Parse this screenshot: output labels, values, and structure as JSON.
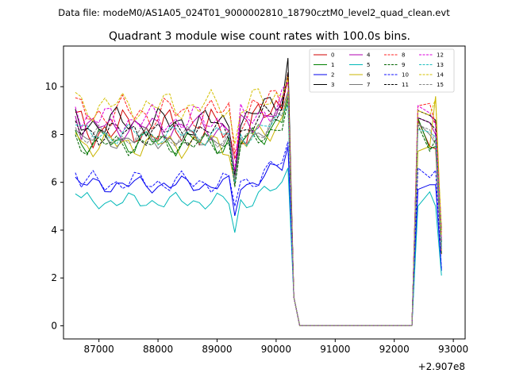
{
  "chart_data": {
    "type": "line",
    "suptitle": "Data file: modeM0/AS1A05_024T01_9000002810_18790cztM0_level2_quad_clean.evt",
    "title": "Quadrant 3 module wise count rates with 100.0s bins.",
    "xlabel": "",
    "ylabel": "",
    "x_offset_label": "+2.907e8",
    "xlim": [
      86400,
      93200
    ],
    "ylim": [
      -0.55,
      11.7
    ],
    "xticks": [
      87000,
      88000,
      89000,
      90000,
      91000,
      92000,
      93000
    ],
    "xtick_labels": [
      "87000",
      "88000",
      "89000",
      "90000",
      "91000",
      "92000",
      "93000"
    ],
    "yticks": [
      0,
      2,
      4,
      6,
      8,
      10
    ],
    "ytick_labels": [
      "0",
      "2",
      "4",
      "6",
      "8",
      "10"
    ],
    "legend_position": "top-right",
    "gap_x": [
      90300,
      90400,
      92300
    ],
    "resume_x": [
      92400,
      92600,
      92700,
      92800
    ],
    "series": [
      {
        "name": "0",
        "color": "#d00000",
        "dash": "solid",
        "base": 8.2,
        "amp": 0.9,
        "dip": 7.0,
        "peak": 10.6,
        "seg2": [
          8.6,
          7.5,
          7.4,
          3.0
        ]
      },
      {
        "name": "1",
        "color": "#008000",
        "dash": "solid",
        "base": 7.7,
        "amp": 0.6,
        "dip": 6.0,
        "peak": 9.6,
        "seg2": [
          8.7,
          7.4,
          7.5,
          3.2
        ]
      },
      {
        "name": "2",
        "color": "#0000ee",
        "dash": "solid",
        "base": 5.9,
        "amp": 0.4,
        "dip": 4.6,
        "peak": 7.5,
        "seg2": [
          5.7,
          5.9,
          5.9,
          2.3
        ]
      },
      {
        "name": "3",
        "color": "#000000",
        "dash": "solid",
        "base": 8.5,
        "amp": 0.7,
        "dip": 6.3,
        "peak": 11.2,
        "seg2": [
          9.0,
          8.8,
          8.6,
          4.0
        ]
      },
      {
        "name": "4",
        "color": "#b000b0",
        "dash": "solid",
        "base": 8.3,
        "amp": 0.6,
        "dip": 6.2,
        "peak": 10.2,
        "seg2": [
          8.7,
          8.5,
          8.0,
          3.3
        ]
      },
      {
        "name": "5",
        "color": "#00b8b8",
        "dash": "solid",
        "base": 5.2,
        "amp": 0.4,
        "dip": 3.9,
        "peak": 6.6,
        "seg2": [
          5.0,
          5.6,
          5.0,
          2.1
        ]
      },
      {
        "name": "6",
        "color": "#c8b400",
        "dash": "solid",
        "base": 7.6,
        "amp": 0.6,
        "dip": 6.0,
        "peak": 9.7,
        "seg2": [
          7.3,
          7.5,
          9.6,
          3.6
        ]
      },
      {
        "name": "7",
        "color": "#777777",
        "dash": "solid",
        "base": 7.8,
        "amp": 0.5,
        "dip": 5.9,
        "peak": 9.8,
        "seg2": [
          8.5,
          8.0,
          7.6,
          3.4
        ]
      },
      {
        "name": "8",
        "color": "#ff2020",
        "dash": "dashed",
        "base": 8.9,
        "amp": 0.8,
        "dip": 7.2,
        "peak": 10.4,
        "seg2": [
          9.2,
          9.3,
          8.4,
          3.9
        ]
      },
      {
        "name": "9",
        "color": "#006400",
        "dash": "dashed",
        "base": 7.6,
        "amp": 0.5,
        "dip": 5.8,
        "peak": 9.4,
        "seg2": [
          8.4,
          7.3,
          7.8,
          3.0
        ]
      },
      {
        "name": "10",
        "color": "#1010ff",
        "dash": "dashed",
        "base": 6.0,
        "amp": 0.5,
        "dip": 5.0,
        "peak": 7.7,
        "seg2": [
          6.6,
          6.2,
          6.5,
          2.4
        ]
      },
      {
        "name": "11",
        "color": "#000000",
        "dash": "dashed",
        "base": 8.1,
        "amp": 0.6,
        "dip": 6.3,
        "peak": 10.6,
        "seg2": [
          8.7,
          8.5,
          8.2,
          3.5
        ]
      },
      {
        "name": "12",
        "color": "#dd00dd",
        "dash": "dashed",
        "base": 8.6,
        "amp": 0.7,
        "dip": 6.5,
        "peak": 10.2,
        "seg2": [
          9.2,
          8.9,
          8.4,
          3.6
        ]
      },
      {
        "name": "13",
        "color": "#20c0c0",
        "dash": "dashed",
        "base": 8.0,
        "amp": 0.5,
        "dip": 6.0,
        "peak": 9.2,
        "seg2": [
          8.2,
          8.1,
          7.9,
          3.3
        ]
      },
      {
        "name": "14",
        "color": "#d4c000",
        "dash": "dashed",
        "base": 9.2,
        "amp": 0.7,
        "dip": 7.6,
        "peak": 10.4,
        "seg2": [
          9.0,
          8.8,
          9.5,
          3.8
        ]
      },
      {
        "name": "15",
        "color": "#888888",
        "dash": "dashed",
        "base": 7.9,
        "amp": 0.5,
        "dip": 6.1,
        "peak": 9.7,
        "seg2": [
          8.4,
          8.2,
          7.7,
          3.2
        ]
      }
    ]
  }
}
